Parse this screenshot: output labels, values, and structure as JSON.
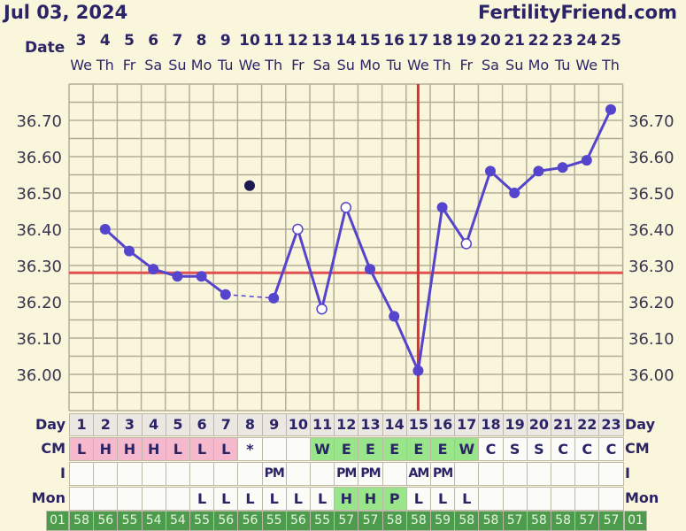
{
  "header": {
    "date": "Jul 03, 2024",
    "site": "FertilityFriend.com",
    "date_label": "Date"
  },
  "dates": [
    "3",
    "4",
    "5",
    "6",
    "7",
    "8",
    "9",
    "10",
    "11",
    "12",
    "13",
    "14",
    "15",
    "16",
    "17",
    "18",
    "19",
    "20",
    "21",
    "22",
    "23",
    "24",
    "25"
  ],
  "weekdays": [
    "We",
    "Th",
    "Fr",
    "Sa",
    "Su",
    "Mo",
    "Tu",
    "We",
    "Th",
    "Fr",
    "Sa",
    "Su",
    "Mo",
    "Tu",
    "We",
    "Th",
    "Fr",
    "Sa",
    "Su",
    "Mo",
    "Tu",
    "We",
    "Th"
  ],
  "colors": {
    "line": "#5544cc",
    "coverline": "#e05050",
    "ovulation": "#e03030",
    "discarded": "#1e1a50",
    "pink": "#f5b8cc",
    "green": "#98e58a",
    "dark_green": "#4d9c4d"
  },
  "chart_data": {
    "type": "line",
    "ylim": [
      35.9,
      36.8
    ],
    "yticks": [
      "36.70",
      "36.60",
      "36.50",
      "36.40",
      "36.30",
      "36.20",
      "36.10",
      "36.00"
    ],
    "grid": true,
    "coverline": 36.28,
    "ovulation_day": 15,
    "days": [
      1,
      2,
      3,
      4,
      5,
      6,
      7,
      8,
      9,
      10,
      11,
      12,
      13,
      14,
      15,
      16,
      17,
      18,
      19,
      20,
      21,
      22,
      23
    ],
    "temps": [
      null,
      36.4,
      36.34,
      36.29,
      36.27,
      36.27,
      36.22,
      36.52,
      36.21,
      36.4,
      36.18,
      36.46,
      36.29,
      36.16,
      36.01,
      36.46,
      36.36,
      36.56,
      36.5,
      36.56,
      36.57,
      36.59,
      36.73
    ],
    "point_style": [
      "none",
      "filled",
      "filled",
      "filled",
      "filled",
      "filled",
      "filled",
      "discarded",
      "filled",
      "open",
      "open",
      "open",
      "filled",
      "filled",
      "filled",
      "filled",
      "open",
      "filled",
      "filled",
      "filled",
      "filled",
      "filled",
      "filled"
    ]
  },
  "table": {
    "labels": {
      "day": "Day",
      "cm": "CM",
      "i": "I",
      "mon": "Mon",
      "left_code": "01",
      "right_code": "01"
    },
    "cm": [
      "L",
      "H",
      "H",
      "H",
      "L",
      "L",
      "L",
      "*",
      "",
      "",
      "W",
      "E",
      "E",
      "E",
      "E",
      "E",
      "W",
      "C",
      "S",
      "S",
      "C",
      "C",
      "C"
    ],
    "cm_color": [
      "pink",
      "pink",
      "pink",
      "pink",
      "pink",
      "pink",
      "pink",
      "",
      "",
      "",
      "green",
      "green",
      "green",
      "green",
      "green",
      "green",
      "green",
      "",
      "",
      "",
      "",
      "",
      ""
    ],
    "i": [
      "",
      "",
      "",
      "",
      "",
      "",
      "",
      "",
      "PM",
      "",
      "",
      "PM",
      "PM",
      "",
      "AM",
      "PM",
      "",
      "",
      "",
      "",
      "",
      "",
      ""
    ],
    "mon": [
      "",
      "",
      "",
      "",
      "",
      "L",
      "L",
      "L",
      "L",
      "L",
      "L",
      "H",
      "H",
      "P",
      "L",
      "L",
      "L",
      "",
      "",
      "",
      "",
      "",
      ""
    ],
    "mon_color": [
      "",
      "",
      "",
      "",
      "",
      "",
      "",
      "",
      "",
      "",
      "",
      "green",
      "green",
      "green",
      "",
      "",
      "",
      "",
      "",
      "",
      "",
      "",
      ""
    ],
    "codes": [
      "58",
      "56",
      "55",
      "54",
      "54",
      "55",
      "56",
      "56",
      "55",
      "56",
      "55",
      "57",
      "57",
      "58",
      "58",
      "59",
      "58",
      "58",
      "57",
      "58",
      "58",
      "57",
      "57"
    ]
  }
}
